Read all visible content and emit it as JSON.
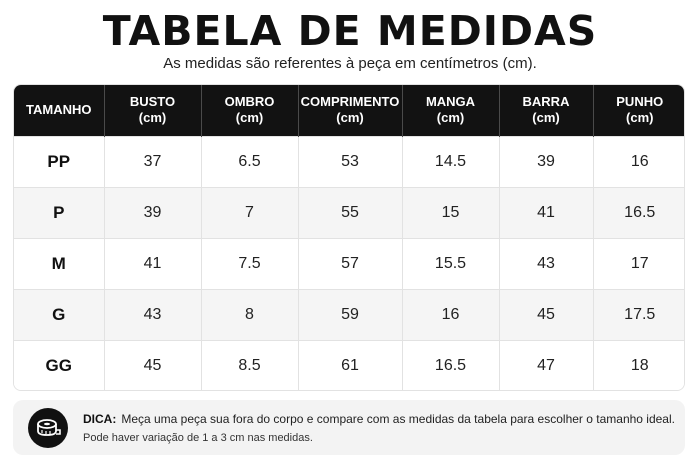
{
  "header": {
    "title": "TABELA DE MEDIDAS",
    "subtitle": "As medidas são referentes à peça em centímetros (cm)."
  },
  "table": {
    "columns": [
      {
        "name": "TAMANHO",
        "unit": ""
      },
      {
        "name": "BUSTO",
        "unit": "(cm)"
      },
      {
        "name": "OMBRO",
        "unit": "(cm)"
      },
      {
        "name": "COMPRIMENTO",
        "unit": "(cm)"
      },
      {
        "name": "MANGA",
        "unit": "(cm)"
      },
      {
        "name": "BARRA",
        "unit": "(cm)"
      },
      {
        "name": "PUNHO",
        "unit": "(cm)"
      }
    ],
    "rows": [
      [
        "PP",
        "37",
        "6.5",
        "53",
        "14.5",
        "39",
        "16"
      ],
      [
        "P",
        "39",
        "7",
        "55",
        "15",
        "41",
        "16.5"
      ],
      [
        "M",
        "41",
        "7.5",
        "57",
        "15.5",
        "43",
        "17"
      ],
      [
        "G",
        "43",
        "8",
        "59",
        "16",
        "45",
        "17.5"
      ],
      [
        "GG",
        "45",
        "8.5",
        "61",
        "16.5",
        "47",
        "18"
      ]
    ]
  },
  "tip": {
    "icon": "measuring-tape-icon",
    "label": "DICA:",
    "text": "Meça uma peça sua fora do corpo e compare com as medidas da tabela para escolher o tamanho ideal.",
    "note": "Pode haver variação de 1 a 3 cm nas medidas."
  },
  "colors": {
    "header_bg": "#121212",
    "header_text": "#ffffff",
    "zebra": "#f5f5f5",
    "tip_bg": "#f3f3f3"
  }
}
